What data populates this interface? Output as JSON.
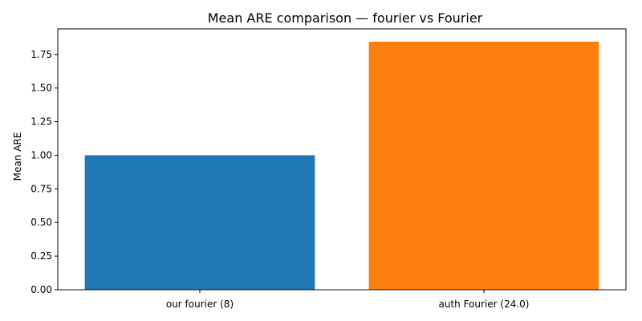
{
  "chart_data": {
    "type": "bar",
    "title": "Mean ARE comparison — fourier vs Fourier",
    "xlabel": "",
    "ylabel": "Mean ARE",
    "categories": [
      "our fourier (8)",
      "auth Fourier (24.0)"
    ],
    "values": [
      1.0,
      1.845
    ],
    "colors": [
      "#1f77b4",
      "#ff7f0e"
    ],
    "ylim": [
      0,
      1.94
    ],
    "yticks": [
      0.0,
      0.25,
      0.5,
      0.75,
      1.0,
      1.25,
      1.5,
      1.75
    ],
    "ytick_labels": [
      "0.00",
      "0.25",
      "0.50",
      "0.75",
      "1.00",
      "1.25",
      "1.50",
      "1.75"
    ],
    "grid": false,
    "legend": "none"
  }
}
